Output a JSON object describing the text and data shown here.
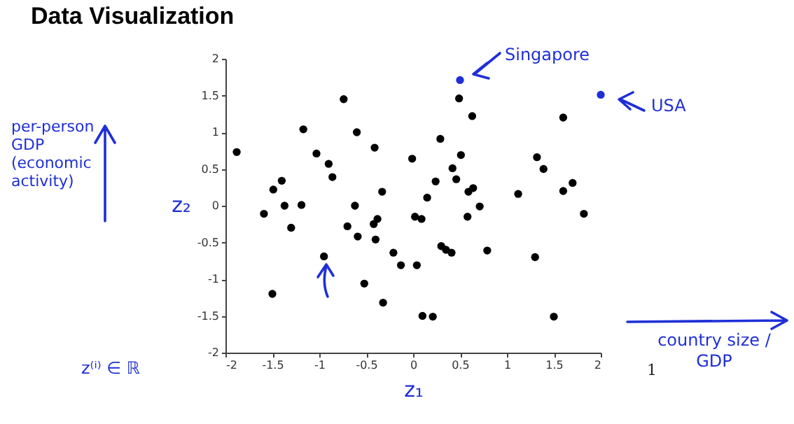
{
  "chart_data": {
    "type": "scatter",
    "title": "Data Visualization",
    "xlabel": "z₁",
    "ylabel": "z₂",
    "xlim": [
      -2,
      2
    ],
    "ylim": [
      -2,
      2
    ],
    "xticks": [
      -2,
      -1.5,
      -1,
      -0.5,
      0,
      0.5,
      1,
      1.5,
      2
    ],
    "yticks": [
      -2,
      -1.5,
      -1,
      -0.5,
      0,
      0.5,
      1,
      1.5,
      2
    ],
    "grid": false,
    "legend": false,
    "marker": "circle",
    "series": [
      {
        "color": "#000000",
        "x": [
          -1.88,
          -0.74,
          -1.17,
          -0.6,
          -0.41,
          -1.03,
          -0.9,
          -0.86,
          -1.4,
          -1.49,
          -0.33,
          -1.59,
          -1.37,
          -1.19,
          -0.62,
          -1.3,
          -0.7,
          -0.59,
          -0.38,
          -0.42,
          -0.4,
          -0.21,
          -0.95,
          -0.52,
          -1.5,
          -0.32,
          0.49,
          0.63,
          1.6,
          0.29,
          -0.01,
          0.51,
          0.42,
          1.32,
          1.39,
          0.24,
          0.46,
          1.7,
          0.15,
          0.59,
          0.64,
          1.6,
          1.12,
          0.71,
          0.02,
          0.09,
          0.58,
          1.82,
          0.3,
          0.35,
          0.41,
          0.79,
          1.3,
          -0.13,
          0.04,
          0.1,
          0.21,
          1.5
        ],
        "values": [
          0.73,
          1.45,
          1.04,
          1.0,
          0.79,
          0.71,
          0.57,
          0.39,
          0.34,
          0.22,
          0.19,
          -0.11,
          0,
          0.01,
          0,
          -0.3,
          -0.28,
          -0.42,
          -0.18,
          -0.25,
          -0.46,
          -0.64,
          -0.69,
          -1.06,
          -1.2,
          -1.32,
          1.46,
          1.22,
          1.2,
          0.91,
          0.64,
          0.69,
          0.51,
          0.66,
          0.5,
          0.33,
          0.36,
          0.31,
          0.11,
          0.19,
          0.24,
          0.2,
          0.16,
          -0.01,
          -0.15,
          -0.18,
          -0.15,
          -0.11,
          -0.55,
          -0.6,
          -0.64,
          -0.61,
          -0.7,
          -0.81,
          -0.81,
          -1.5,
          -1.51,
          -1.51
        ]
      },
      {
        "color": "#1f2fd8",
        "x": [
          0.5,
          2.0
        ],
        "values": [
          1.71,
          1.51
        ]
      }
    ],
    "annotations": [
      {
        "text": "Singapore",
        "x": 0.5,
        "y": 1.71
      },
      {
        "text": "USA",
        "x": 2.0,
        "y": 1.51
      },
      "per-person GDP (economic activity)",
      "country size / GDP",
      "z⁽ⁱ⁾ ∈ ℝ",
      "1"
    ]
  }
}
